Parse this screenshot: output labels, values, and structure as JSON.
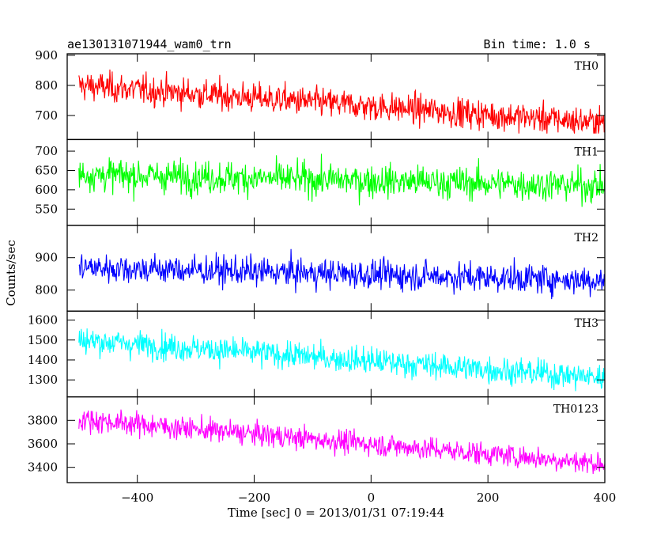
{
  "header": {
    "left_title": "ae130131071944_wam0_trn",
    "right_title": "Bin time: 1.0 s"
  },
  "chart_data": {
    "type": "line",
    "title": "ae130131071944_wam0_trn",
    "subtitle": "Bin time: 1.0 s",
    "xlabel": "Time [sec] 0 = 2013/01/31 07:19:44",
    "ylabel": "Counts/sec",
    "xlim": [
      -520,
      400
    ],
    "xticks": [
      -400,
      -200,
      0,
      200,
      400
    ],
    "x_start": -500,
    "x_end": 400,
    "bin_time_s": 1.0,
    "panels": [
      {
        "name": "TH0",
        "color": "#ff0000",
        "ylim": [
          620,
          905
        ],
        "yticks": [
          700,
          800,
          900
        ],
        "trend_start": 800,
        "trend_end": 675,
        "noise": 35,
        "y_min": 640,
        "y_max": 905,
        "fill": true
      },
      {
        "name": "TH1",
        "color": "#00ff00",
        "ylim": [
          508,
          730
        ],
        "yticks": [
          550,
          600,
          650,
          700
        ],
        "trend_start": 640,
        "trend_end": 610,
        "noise": 30,
        "y_min": 515,
        "y_max": 725,
        "fill": true
      },
      {
        "name": "TH2",
        "color": "#0000ff",
        "ylim": [
          735,
          1000
        ],
        "yticks": [
          800,
          900
        ],
        "trend_start": 870,
        "trend_end": 830,
        "noise": 32,
        "y_min": 750,
        "y_max": 995,
        "fill": true
      },
      {
        "name": "TH3",
        "color": "#00ffff",
        "ylim": [
          1215,
          1645
        ],
        "yticks": [
          1300,
          1400,
          1500,
          1600
        ],
        "trend_start": 1500,
        "trend_end": 1310,
        "noise": 48,
        "y_min": 1240,
        "y_max": 1640,
        "fill": true
      },
      {
        "name": "TH0123",
        "color": "#ff00ff",
        "ylim": [
          3270,
          4000
        ],
        "yticks": [
          3400,
          3600,
          3800
        ],
        "trend_start": 3810,
        "trend_end": 3430,
        "noise": 70,
        "y_min": 3280,
        "y_max": 4000,
        "fill": true
      }
    ]
  }
}
